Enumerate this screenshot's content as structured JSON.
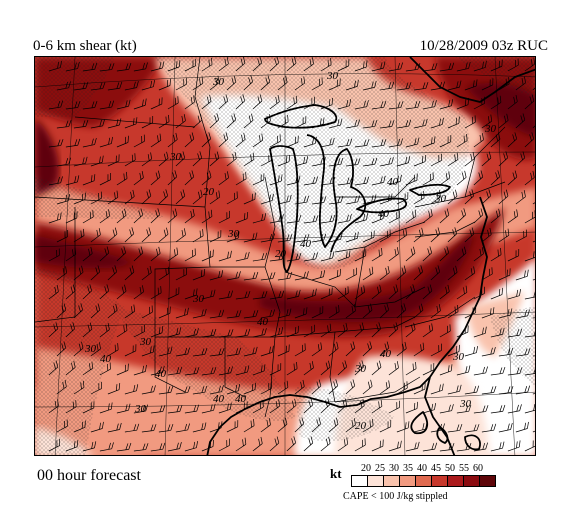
{
  "header": {
    "title": "0-6 km shear (kt)",
    "datetime_model": "10/28/2009  03z  RUC"
  },
  "footer": {
    "forecast_label": "00 hour forecast"
  },
  "legend": {
    "unit": "kt",
    "thresholds": [
      "20",
      "25",
      "30",
      "35",
      "40",
      "45",
      "50",
      "55",
      "60"
    ],
    "colors": [
      "#ffffff",
      "#fde3d8",
      "#f9c3ad",
      "#f19a80",
      "#e06a50",
      "#c7382c",
      "#ab1a1c",
      "#8b0b10",
      "#5e0509"
    ],
    "note": "CAPE < 100 J/kg stippled"
  },
  "map": {
    "contour_labels": [
      "30",
      "30",
      "30",
      "20",
      "30",
      "40",
      "40",
      "30",
      "20",
      "40",
      "30",
      "40",
      "30",
      "30",
      "40",
      "40",
      "40",
      "40",
      "30",
      "40",
      "30",
      "30",
      "30",
      "30",
      "20"
    ],
    "features": [
      "state-boundaries",
      "coastlines",
      "wind-barbs",
      "lat-lon-grid",
      "cape-stippling"
    ]
  }
}
